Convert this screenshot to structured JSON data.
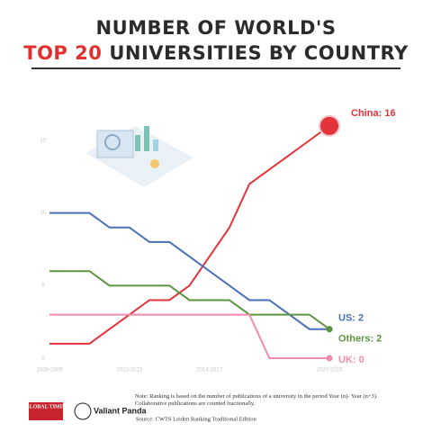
{
  "chart_data": {
    "type": "line",
    "title": "NUMBER OF WORLD'S",
    "title_highlight": "TOP 20",
    "title_rest": "UNIVERSITIES BY COUNTRY",
    "categories": [
      "2006-2009",
      null,
      null,
      null,
      "2010-2013",
      null,
      null,
      null,
      "2014-2017",
      null,
      null,
      null,
      null,
      null,
      "2020-2023"
    ],
    "series": [
      {
        "name": "China",
        "color": "#e2343a",
        "end_label": "China: 16",
        "values": [
          1,
          1,
          1,
          2,
          3,
          4,
          4,
          5,
          7,
          9,
          12,
          13,
          14,
          15,
          16
        ]
      },
      {
        "name": "US",
        "color": "#4a70b8",
        "end_label": "US: 2",
        "values": [
          10,
          10,
          10,
          9,
          9,
          8,
          8,
          7,
          6,
          5,
          4,
          4,
          3,
          2,
          2
        ]
      },
      {
        "name": "Others",
        "color": "#5d9440",
        "end_label": "Others: 2",
        "values": [
          6,
          6,
          6,
          5,
          5,
          5,
          5,
          4,
          4,
          4,
          3,
          3,
          3,
          3,
          2
        ]
      },
      {
        "name": "UK",
        "color": "#f08bab",
        "end_label": "UK: 0",
        "values": [
          3,
          3,
          3,
          3,
          3,
          3,
          3,
          3,
          3,
          3,
          3,
          0,
          0,
          0,
          0
        ]
      }
    ],
    "ylim": [
      0,
      15
    ],
    "yticks": [
      0,
      5,
      10,
      15
    ]
  },
  "logos": [
    "GLOBAL TIMES",
    "Valiant Panda"
  ],
  "note": "Note: Ranking is based on the number of publications of a university in the period Year (n)- Year (n+3). Collaborative publications are counted fractionally.",
  "source": "Source: CWTS Leiden Ranking Traditional Edition"
}
